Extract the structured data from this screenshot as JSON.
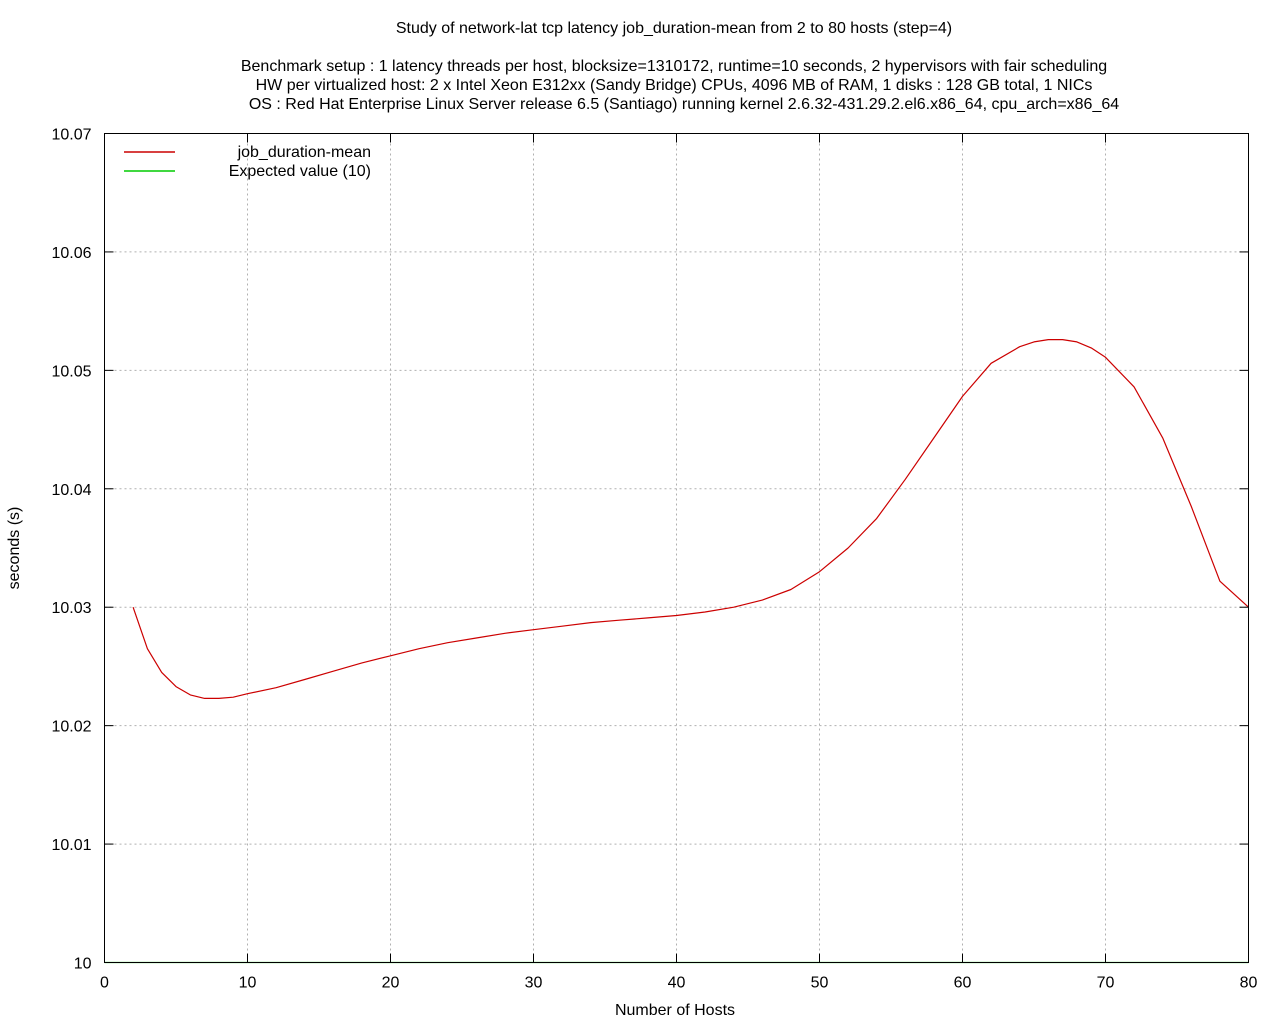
{
  "chart_data": {
    "type": "line",
    "title": "Study of network-lat tcp latency job_duration-mean from 2 to 80 hosts (step=4)",
    "subtitle_lines": [
      "Benchmark setup : 1 latency threads per host, blocksize=1310172, runtime=10 seconds, 2 hypervisors with fair scheduling",
      "HW per virtualized host: 2 x Intel Xeon E312xx (Sandy Bridge) CPUs, 4096 MB of RAM, 1 disks : 128 GB total, 1 NICs",
      "OS : Red Hat Enterprise Linux Server release 6.5 (Santiago) running kernel 2.6.32-431.29.2.el6.x86_64, cpu_arch=x86_64"
    ],
    "xlabel": "Number of Hosts",
    "ylabel": "seconds (s)",
    "xlim": [
      0,
      80
    ],
    "ylim": [
      10,
      10.07
    ],
    "xticks": [
      0,
      10,
      20,
      30,
      40,
      50,
      60,
      70,
      80
    ],
    "yticks": [
      10,
      10.01,
      10.02,
      10.03,
      10.04,
      10.05,
      10.06,
      10.07
    ],
    "xtick_labels": [
      "0",
      "10",
      "20",
      "30",
      "40",
      "50",
      "60",
      "70",
      "80"
    ],
    "ytick_labels": [
      "10",
      "10.01",
      "10.02",
      "10.03",
      "10.04",
      "10.05",
      "10.06",
      "10.07"
    ],
    "grid": true,
    "legend_position": "top-left",
    "series": [
      {
        "name": "job_duration-mean",
        "color": "#cc0000",
        "x": [
          2,
          3,
          4,
          5,
          6,
          7,
          8,
          9,
          10,
          12,
          14,
          16,
          18,
          20,
          22,
          24,
          26,
          28,
          30,
          32,
          34,
          36,
          38,
          40,
          42,
          44,
          46,
          48,
          50,
          52,
          54,
          56,
          58,
          60,
          62,
          64,
          65,
          66,
          67,
          68,
          69,
          70,
          72,
          74,
          76,
          78,
          80
        ],
        "y": [
          10.03,
          10.0265,
          10.0245,
          10.0233,
          10.0226,
          10.0223,
          10.0223,
          10.0224,
          10.0227,
          10.0232,
          10.0239,
          10.0246,
          10.0253,
          10.0259,
          10.0265,
          10.027,
          10.0274,
          10.0278,
          10.0281,
          10.0284,
          10.0287,
          10.0289,
          10.0291,
          10.0293,
          10.0296,
          10.03,
          10.0306,
          10.0315,
          10.033,
          10.035,
          10.0375,
          10.0408,
          10.0443,
          10.0478,
          10.0506,
          10.052,
          10.0524,
          10.0526,
          10.0526,
          10.0524,
          10.0519,
          10.0511,
          10.0486,
          10.0443,
          10.0385,
          10.0322,
          10.03
        ]
      },
      {
        "name": "Expected value (10)",
        "color": "#00cc00",
        "x": [
          0,
          80
        ],
        "y": [
          10,
          10
        ]
      }
    ]
  }
}
